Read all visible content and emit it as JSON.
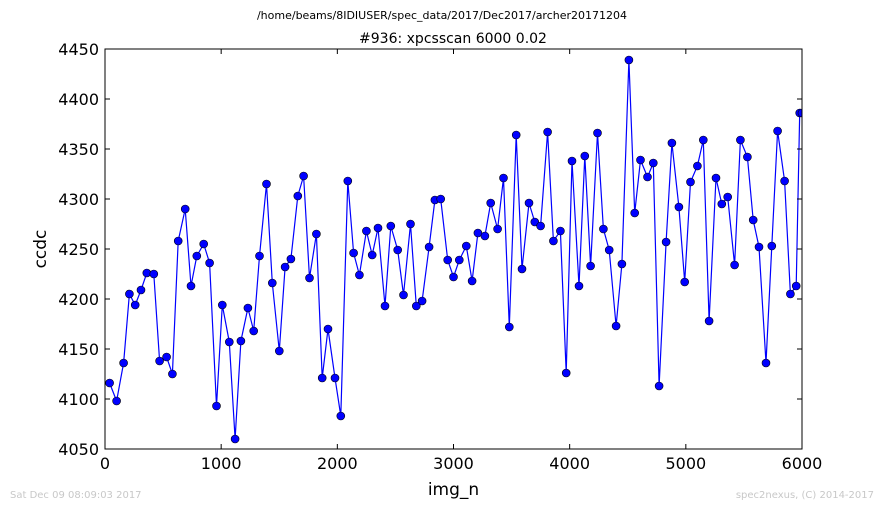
{
  "header": {
    "path": "/home/beams/8IDIUSER/spec_data/2017/Dec2017/archer20171204"
  },
  "footer": {
    "timestamp": "Sat Dec 09 08:09:03 2017",
    "credit": "spec2nexus, (C) 2014-2017"
  },
  "chart_data": {
    "type": "line",
    "title": "#936: xpcsscan 6000 0.02",
    "xlabel": "img_n",
    "ylabel": "ccdc",
    "xlim": [
      0,
      6000
    ],
    "ylim": [
      4050,
      4450
    ],
    "xticks": [
      0,
      1000,
      2000,
      3000,
      4000,
      5000,
      6000
    ],
    "yticks": [
      4050,
      4100,
      4150,
      4200,
      4250,
      4300,
      4350,
      4400,
      4450
    ],
    "grid": false,
    "marker": "circle",
    "line_color": "#0000ff",
    "marker_color": "#0000ff",
    "series": [
      {
        "x": [
          40,
          100,
          160,
          210,
          260,
          310,
          360,
          420,
          470,
          530,
          580,
          630,
          690,
          740,
          790,
          850,
          900,
          960,
          1010,
          1070,
          1120,
          1170,
          1230,
          1280,
          1330,
          1390,
          1440,
          1500,
          1550,
          1600,
          1660,
          1710,
          1760,
          1820,
          1870,
          1920,
          1980,
          2030,
          2090,
          2140,
          2190,
          2250,
          2300,
          2350,
          2410,
          2460,
          2520,
          2570,
          2630,
          2680,
          2730,
          2790,
          2840,
          2890,
          2950,
          3000,
          3050,
          3110,
          3160,
          3210,
          3270,
          3320,
          3380,
          3430,
          3480,
          3540,
          3590,
          3650,
          3700,
          3750,
          3810,
          3860,
          3920,
          3970,
          4020,
          4080,
          4130,
          4180,
          4240,
          4290,
          4340,
          4400,
          4450,
          4510,
          4560,
          4610,
          4670,
          4720,
          4770,
          4830,
          4880,
          4940,
          4990,
          5040,
          5100,
          5150,
          5200,
          5260,
          5310,
          5360,
          5420,
          5470,
          5530,
          5580,
          5630,
          5690,
          5740,
          5790,
          5850,
          5900,
          5950,
          5980,
          6000
        ],
        "y": [
          4116,
          4098,
          4136,
          4205,
          4194,
          4209,
          4226,
          4225,
          4138,
          4142,
          4125,
          4258,
          4290,
          4213,
          4243,
          4255,
          4236,
          4093,
          4194,
          4157,
          4060,
          4158,
          4191,
          4168,
          4243,
          4315,
          4216,
          4148,
          4232,
          4240,
          4303,
          4323,
          4221,
          4265,
          4121,
          4170,
          4121,
          4083,
          4318,
          4246,
          4224,
          4268,
          4244,
          4271,
          4193,
          4273,
          4249,
          4204,
          4275,
          4193,
          4198,
          4252,
          4299,
          4300,
          4239,
          4222,
          4239,
          4253,
          4218,
          4266,
          4263,
          4296,
          4270,
          4321,
          4172,
          4364,
          4230,
          4296,
          4277,
          4273,
          4367,
          4258,
          4268,
          4126,
          4338,
          4213,
          4343,
          4233,
          4366,
          4270,
          4249,
          4173,
          4235,
          4439,
          4286,
          4339,
          4322,
          4336,
          4113,
          4257,
          4356,
          4292,
          4217,
          4317,
          4333,
          4359,
          4178,
          4321,
          4295,
          4302,
          4234,
          4359,
          4342,
          4279,
          4252,
          4136,
          4253,
          4368,
          4318,
          4205,
          4213,
          4386,
          4386
        ]
      }
    ]
  }
}
